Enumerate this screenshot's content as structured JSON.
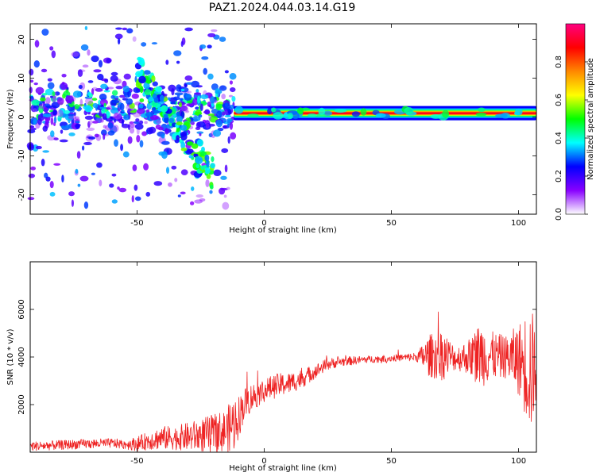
{
  "title": "PAZ1.2024.044.03.14.G19",
  "chart_data": [
    {
      "type": "heatmap",
      "xlabel": "Height of straight line (km)",
      "ylabel": "Frequency (Hz)",
      "xlim": [
        -92,
        107
      ],
      "ylim": [
        -25,
        24
      ],
      "xticks": [
        -50,
        0,
        50,
        100
      ],
      "yticks": [
        -20,
        -10,
        0,
        10,
        20
      ],
      "colorbar": {
        "label": "Normalized spectral amplitude",
        "range": [
          0,
          1
        ],
        "ticks": [
          0.0,
          0.2,
          0.4,
          0.6,
          0.8
        ],
        "colormap": [
          "#ffffff",
          "#8800ff",
          "#0000ff",
          "#00ffff",
          "#00ff00",
          "#ffff00",
          "#ff8800",
          "#ff0000",
          "#ff0080"
        ]
      },
      "features": {
        "continuous_tone": {
          "x_range": [
            -12,
            107
          ],
          "frequency_hz": 1,
          "peak_amplitude": 0.9
        },
        "scattered_region": {
          "x_range": [
            -92,
            -12
          ],
          "frequency_range_hz": [
            -23,
            23
          ],
          "typical_amplitude": 0.3
        },
        "descending_branch": {
          "x_start": -50,
          "freq_start_hz": 12,
          "x_end": -20,
          "freq_end_hz": -15
        }
      }
    },
    {
      "type": "line",
      "xlabel": "Height of straight line (km)",
      "ylabel": "SNR (10 * v/v)",
      "xlim": [
        -92,
        107
      ],
      "ylim": [
        0,
        8000
      ],
      "xticks": [
        -50,
        0,
        50,
        100
      ],
      "yticks": [
        2000,
        4000,
        6000
      ],
      "series": [
        {
          "color": "#ee2222",
          "x": [
            -92,
            -80,
            -70,
            -60,
            -55,
            -50,
            -45,
            -40,
            -35,
            -30,
            -25,
            -20,
            -15,
            -12,
            -10,
            -8,
            -5,
            0,
            5,
            10,
            15,
            20,
            25,
            30,
            35,
            40,
            45,
            50,
            55,
            60,
            65,
            70,
            75,
            80,
            85,
            90,
            95,
            100,
            105,
            107
          ],
          "mean": [
            250,
            300,
            350,
            380,
            330,
            350,
            500,
            600,
            600,
            650,
            700,
            800,
            900,
            1200,
            1500,
            2000,
            2300,
            2600,
            2800,
            2900,
            3100,
            3400,
            3700,
            3800,
            3850,
            3900,
            3920,
            3950,
            3980,
            4000,
            4050,
            4100,
            3950,
            4000,
            4100,
            4050,
            4000,
            3900,
            3500,
            3500
          ],
          "noise": [
            200,
            200,
            200,
            200,
            200,
            300,
            400,
            500,
            500,
            600,
            700,
            800,
            900,
            1200,
            900,
            700,
            600,
            500,
            500,
            450,
            400,
            300,
            250,
            200,
            180,
            150,
            150,
            150,
            150,
            200,
            900,
            1100,
            500,
            700,
            1400,
            1000,
            900,
            1500,
            2800,
            1200
          ]
        }
      ]
    }
  ]
}
